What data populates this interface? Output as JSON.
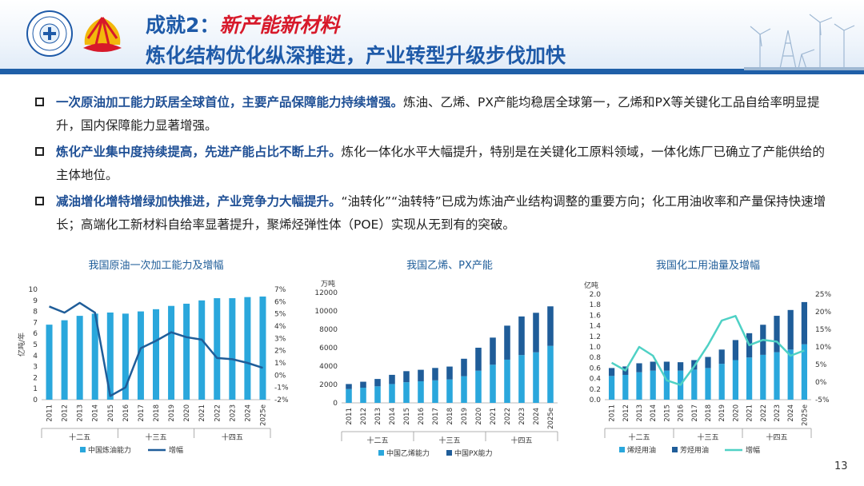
{
  "header": {
    "title_prefix": "成就2：",
    "title_highlight": "新产能新材料",
    "subtitle": "炼化结构优化纵深推进，产业转型升级步伐加快"
  },
  "bullets": [
    {
      "bold": "一次原油加工能力跃居全球首位，主要产品保障能力持续增强。",
      "text": "炼油、乙烯、PX产能均稳居全球第一，乙烯和PX等关键化工品自给率明显提升，国内保障能力显著增强。"
    },
    {
      "bold": "炼化产业集中度持续提高，先进产能占比不断上升。",
      "text": "炼化一体化水平大幅提升，特别是在关键化工原料领域，一体化炼厂已确立了产能供给的主体地位。"
    },
    {
      "bold": "减油增化增特增绿加快推进，产业竞争力大幅提升。",
      "text": "“油转化”“油转特”已成为炼油产业结构调整的重要方向；化工用油收率和产量保持快速增长；高端化工新材料自给率显著提升，聚烯烃弹性体（POE）实现从无到有的突破。"
    }
  ],
  "page_number": "13",
  "chart_data": [
    {
      "type": "bar",
      "title": "我国原油一次加工能力及增幅",
      "ylabel": "亿吨/年",
      "categories": [
        "2011",
        "2012",
        "2013",
        "2014",
        "2015",
        "2016",
        "2017",
        "2018",
        "2019",
        "2020",
        "2021",
        "2022",
        "2023",
        "2024",
        "2025e"
      ],
      "groups": [
        "十二五",
        "十三五",
        "十四五"
      ],
      "ylim": [
        0,
        10
      ],
      "yticks": [
        "0",
        "1",
        "2",
        "3",
        "4",
        "5",
        "6",
        "7",
        "8",
        "9",
        "10"
      ],
      "y2lim": [
        -2,
        7
      ],
      "y2ticks": [
        "-2%",
        "-1%",
        "0%",
        "1%",
        "2%",
        "3%",
        "4%",
        "5%",
        "6%",
        "7%"
      ],
      "series": [
        {
          "name": "中国炼油能力",
          "kind": "bar",
          "color": "#2aa7dc",
          "values": [
            6.8,
            7.2,
            7.6,
            7.8,
            7.9,
            7.8,
            8.0,
            8.2,
            8.5,
            8.7,
            9.0,
            9.2,
            9.2,
            9.3,
            9.35
          ]
        },
        {
          "name": "增幅",
          "kind": "line",
          "axis": "y2",
          "color": "#1f5d99",
          "values": [
            5.6,
            5.1,
            5.9,
            5.1,
            -1.7,
            -1.0,
            2.2,
            2.8,
            3.5,
            3.1,
            2.9,
            1.4,
            1.3,
            1.0,
            0.6
          ]
        }
      ]
    },
    {
      "type": "stacked-bar",
      "title": "我国乙烯、PX产能",
      "ylabel": "万吨",
      "categories": [
        "2011",
        "2012",
        "2013",
        "2014",
        "2015",
        "2016",
        "2017",
        "2018",
        "2019",
        "2020",
        "2021",
        "2022",
        "2023",
        "2024",
        "2025e"
      ],
      "groups": [
        "十二五",
        "十三五",
        "十四五"
      ],
      "ylim": [
        0,
        12000
      ],
      "yticks": [
        "0",
        "2000",
        "4000",
        "6000",
        "8000",
        "10000",
        "12000"
      ],
      "series": [
        {
          "name": "中国乙烯能力",
          "color": "#2aa7dc",
          "values": [
            1500,
            1650,
            1800,
            2050,
            2250,
            2350,
            2450,
            2550,
            2900,
            3500,
            4150,
            4700,
            5200,
            5500,
            6200
          ]
        },
        {
          "name": "中国PX能力",
          "color": "#1f5d99",
          "values": [
            550,
            650,
            800,
            1000,
            1200,
            1250,
            1350,
            1400,
            1900,
            2500,
            2950,
            3700,
            4200,
            4300,
            4300
          ]
        }
      ]
    },
    {
      "type": "stacked-bar",
      "title": "我国化工用油量及增幅",
      "ylabel": "亿吨",
      "categories": [
        "2011",
        "2012",
        "2013",
        "2014",
        "2015",
        "2016",
        "2017",
        "2018",
        "2019",
        "2020",
        "2021",
        "2022",
        "2023",
        "2024",
        "2025e"
      ],
      "groups": [
        "十二五",
        "十三五",
        "十四五"
      ],
      "ylim": [
        0,
        2.0
      ],
      "yticks": [
        "0.0",
        "0.2",
        "0.4",
        "0.6",
        "0.8",
        "1.0",
        "1.2",
        "1.4",
        "1.6",
        "1.8",
        "2.0"
      ],
      "y2lim": [
        -5,
        25
      ],
      "y2ticks": [
        "-5%",
        "0%",
        "5%",
        "10%",
        "15%",
        "20%",
        "25%"
      ],
      "series": [
        {
          "name": "烯烃用油",
          "kind": "bar",
          "color": "#2aa7dc",
          "values": [
            0.45,
            0.47,
            0.52,
            0.55,
            0.55,
            0.55,
            0.57,
            0.6,
            0.68,
            0.75,
            0.8,
            0.85,
            0.9,
            0.95,
            1.05
          ]
        },
        {
          "name": "芳烃用油",
          "kind": "bar",
          "color": "#1f5d99",
          "values": [
            0.15,
            0.16,
            0.17,
            0.17,
            0.17,
            0.16,
            0.18,
            0.21,
            0.27,
            0.38,
            0.46,
            0.57,
            0.69,
            0.75,
            0.8
          ]
        },
        {
          "name": "增幅",
          "kind": "line",
          "axis": "y2",
          "color": "#4fd1c5",
          "values": [
            5.5,
            3.3,
            10.0,
            7.5,
            0.5,
            -0.8,
            4.5,
            10.5,
            17.5,
            18.8,
            10.5,
            12.0,
            11.5,
            7.5,
            9.0
          ]
        }
      ]
    }
  ]
}
